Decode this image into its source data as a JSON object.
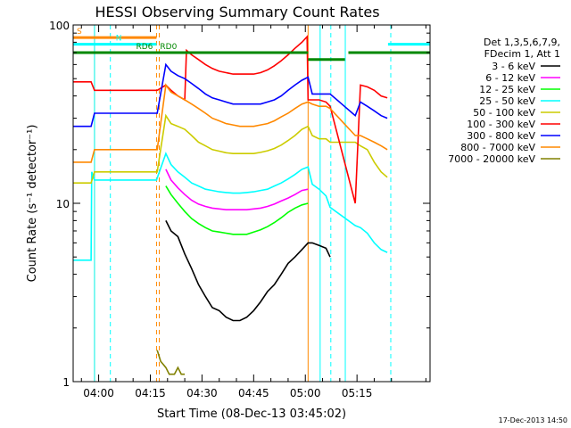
{
  "chart_data": {
    "type": "line",
    "title": "HESSI Observing Summary Count Rates",
    "xlabel": "Start Time (08-Dec-13 03:45:02)",
    "ylabel": "Count Rate (s⁻¹ detector⁻¹)",
    "ylog": true,
    "ylim": [
      1,
      100
    ],
    "xlim_minutes": [
      -7.4,
      96.2
    ],
    "x_ticks": [
      {
        "label": "04:00",
        "min": 0
      },
      {
        "label": "04:15",
        "min": 15
      },
      {
        "label": "04:30",
        "min": 30
      },
      {
        "label": "04:45",
        "min": 45
      },
      {
        "label": "05:00",
        "min": 60
      },
      {
        "label": "05:15",
        "min": 75
      }
    ],
    "y_ticks": [
      {
        "label": "1",
        "value": 1
      },
      {
        "label": "10",
        "value": 10
      },
      {
        "label": "100",
        "value": 100
      }
    ],
    "legend": {
      "placement": "right",
      "header": [
        "Det 1,3,5,6,7,9,",
        "FDecim 1, Att 1"
      ]
    },
    "footer_date": "17-Dec-2013 14:50",
    "series": [
      {
        "name": "3 - 6 keV",
        "color": "#000000",
        "x": [
          19.5,
          21,
          23,
          25,
          27,
          29,
          31,
          33,
          35,
          37,
          39,
          41,
          43,
          45,
          47,
          49,
          51,
          53,
          55,
          57,
          59,
          60.8,
          62,
          64,
          66,
          67.2
        ],
        "y": [
          8,
          7,
          6.5,
          5.2,
          4.3,
          3.5,
          3,
          2.6,
          2.5,
          2.3,
          2.2,
          2.2,
          2.3,
          2.5,
          2.8,
          3.2,
          3.5,
          4,
          4.6,
          5,
          5.5,
          6,
          6,
          5.8,
          5.6,
          5
        ]
      },
      {
        "name": "6 - 12 keV",
        "color": "#ff00ff",
        "x": [
          19.5,
          21,
          23,
          25,
          27,
          29,
          31,
          33,
          35,
          37,
          39,
          41,
          43,
          45,
          47,
          49,
          51,
          53,
          55,
          57,
          59,
          60.8
        ],
        "y": [
          15.5,
          13.5,
          12.2,
          11.2,
          10.4,
          9.9,
          9.6,
          9.4,
          9.3,
          9.2,
          9.2,
          9.2,
          9.2,
          9.3,
          9.4,
          9.6,
          9.9,
          10.3,
          10.7,
          11.2,
          11.8,
          12
        ]
      },
      {
        "name": "12 - 25 keV",
        "color": "#00ff00",
        "x": [
          19.5,
          21,
          23,
          25,
          27,
          29,
          31,
          33,
          35,
          37,
          39,
          41,
          43,
          45,
          47,
          49,
          51,
          53,
          55,
          57,
          59,
          60.8
        ],
        "y": [
          12.5,
          11.2,
          10,
          9,
          8.2,
          7.7,
          7.3,
          7,
          6.9,
          6.8,
          6.7,
          6.7,
          6.7,
          6.9,
          7.1,
          7.4,
          7.8,
          8.3,
          8.9,
          9.4,
          9.8,
          10
        ]
      },
      {
        "name": "25 - 50 keV",
        "color": "#00ffff",
        "x": [
          -7.4,
          -2.2,
          -2,
          -1.2,
          16.8,
          19.5,
          21,
          23,
          25,
          27,
          29,
          31,
          33,
          35,
          37,
          39,
          41,
          43,
          45,
          47,
          49,
          51,
          53,
          55,
          57,
          59,
          60.8,
          62,
          64,
          66,
          67.2,
          74.5,
          76,
          78,
          80,
          82,
          83.8
        ],
        "y": [
          4.8,
          4.8,
          15,
          13.5,
          13.5,
          19,
          16.5,
          15,
          14,
          13,
          12.5,
          12,
          11.8,
          11.6,
          11.5,
          11.4,
          11.4,
          11.5,
          11.6,
          11.8,
          12,
          12.5,
          13,
          13.7,
          14.5,
          15.5,
          16,
          12.8,
          12,
          11,
          9.5,
          7.5,
          7.3,
          6.8,
          6,
          5.5,
          5.3
        ]
      },
      {
        "name": "50 - 100 keV",
        "color": "#cccc00",
        "x": [
          -7.4,
          -2.2,
          -1.2,
          17,
          19.5,
          21,
          23,
          25,
          27,
          29,
          31,
          33,
          35,
          37,
          39,
          41,
          43,
          45,
          47,
          49,
          51,
          53,
          55,
          57,
          59,
          60.8,
          62,
          64,
          66,
          67.2,
          74.5,
          76,
          78,
          80,
          82,
          83.8
        ],
        "y": [
          13,
          13,
          15,
          15,
          31,
          28,
          27,
          26,
          24,
          22,
          21,
          20,
          19.6,
          19.2,
          19,
          19,
          19,
          19,
          19.3,
          19.7,
          20.3,
          21.2,
          22.5,
          24,
          26,
          27,
          24,
          23,
          23,
          22,
          22,
          21,
          20,
          17,
          15,
          14
        ]
      },
      {
        "name": "100 - 300 keV",
        "color": "#ff0000",
        "x": [
          -7.4,
          -2.2,
          -1.2,
          17,
          19.5,
          21,
          23,
          25,
          25.5,
          27,
          29,
          31,
          33,
          35,
          37,
          39,
          41,
          43,
          45,
          47,
          49,
          51,
          53,
          55,
          57,
          59,
          60.5,
          60.8,
          62,
          64,
          66,
          67.2,
          74.5,
          76,
          78,
          80,
          82,
          83.8
        ],
        "y": [
          48,
          48,
          43,
          43,
          46,
          43,
          40,
          38,
          72,
          68,
          64,
          60,
          57,
          55,
          54,
          53,
          53,
          53,
          53,
          54,
          56,
          59,
          63,
          68,
          74,
          80,
          86,
          38,
          38,
          38,
          37,
          35,
          10,
          46,
          45,
          43,
          40,
          39
        ]
      },
      {
        "name": "300 - 800 keV",
        "color": "#0000ff",
        "x": [
          -7.4,
          -2.2,
          -1.2,
          17,
          19.5,
          21,
          23,
          25,
          27,
          29,
          31,
          33,
          35,
          37,
          39,
          41,
          43,
          45,
          47,
          49,
          51,
          53,
          55,
          57,
          59,
          60.8,
          62,
          64,
          66,
          67.2,
          74.5,
          76,
          78,
          80,
          82,
          83.8
        ],
        "y": [
          27,
          27,
          32,
          32,
          60,
          55,
          52,
          50,
          47,
          44,
          41,
          39,
          38,
          37,
          36,
          36,
          36,
          36,
          36,
          37,
          38,
          40,
          43,
          46,
          49,
          51,
          41,
          41,
          41,
          41,
          31,
          37,
          35,
          33,
          31,
          30
        ]
      },
      {
        "name": "800 - 7000 keV",
        "color": "#ff8800",
        "x": [
          -7.4,
          -2.2,
          -1.2,
          17,
          19.5,
          21,
          23,
          25,
          27,
          29,
          31,
          33,
          35,
          37,
          39,
          41,
          43,
          45,
          47,
          49,
          51,
          53,
          55,
          57,
          59,
          60.8,
          62,
          64,
          66,
          67.2,
          74.5,
          76,
          78,
          80,
          82,
          83.8
        ],
        "y": [
          17,
          17,
          20,
          20,
          46,
          42,
          40,
          38,
          36,
          34,
          32,
          30,
          29,
          28,
          27.5,
          27,
          27,
          27,
          27.5,
          28,
          29,
          30.5,
          32,
          34,
          36,
          37,
          36,
          35,
          35,
          34,
          24,
          24,
          23,
          22,
          21,
          20
        ]
      },
      {
        "name": "7000 - 20000 keV",
        "color": "#808000",
        "x": [
          17,
          18,
          19.5,
          20.5,
          22,
          23,
          24,
          25
        ],
        "y": [
          1.5,
          1.3,
          1.2,
          1.1,
          1.1,
          1.2,
          1.1,
          1.1
        ]
      }
    ],
    "state_bars": [
      {
        "label": "S",
        "color": "#ff8800",
        "value": 85,
        "x_from": -7.4,
        "x_to": 16.8
      },
      {
        "label": "N",
        "color": "#00ffff",
        "value": 78,
        "x_from": -7.4,
        "x_to": 16.8
      },
      {
        "label": "",
        "color": "#00ffff",
        "value": 78,
        "x_from": 84,
        "x_to": 96.2
      },
      {
        "label": "RD0",
        "color": "#008800",
        "value": 70,
        "x_from": 16.8,
        "x_to": 60.8
      },
      {
        "label": "RD6",
        "color": "#008800",
        "value": 70,
        "x_from": -7.4,
        "x_to": 16.8
      },
      {
        "label": "",
        "color": "#008800",
        "value": 64,
        "x_from": 60.8,
        "x_to": 71.5
      },
      {
        "label": "",
        "color": "#008800",
        "value": 70,
        "x_from": 72.5,
        "x_to": 96.2
      }
    ],
    "vertical_markers": [
      {
        "min": -1.2,
        "color": "#ff8800",
        "style": "solid"
      },
      {
        "min": -1.2,
        "color": "#00ffff",
        "style": "solid"
      },
      {
        "min": 3.4,
        "color": "#00ffff",
        "style": "dashed"
      },
      {
        "min": 16.8,
        "color": "#ff8800",
        "style": "dashed"
      },
      {
        "min": 17.6,
        "color": "#ff8800",
        "style": "dashed"
      },
      {
        "min": 60.8,
        "color": "#ff8800",
        "style": "solid"
      },
      {
        "min": 64.3,
        "color": "#00ffff",
        "style": "solid"
      },
      {
        "min": 67.4,
        "color": "#00ffff",
        "style": "dashed"
      },
      {
        "min": 71.6,
        "color": "#00ffff",
        "style": "solid"
      },
      {
        "min": 84.8,
        "color": "#00ffff",
        "style": "dashed"
      }
    ]
  }
}
